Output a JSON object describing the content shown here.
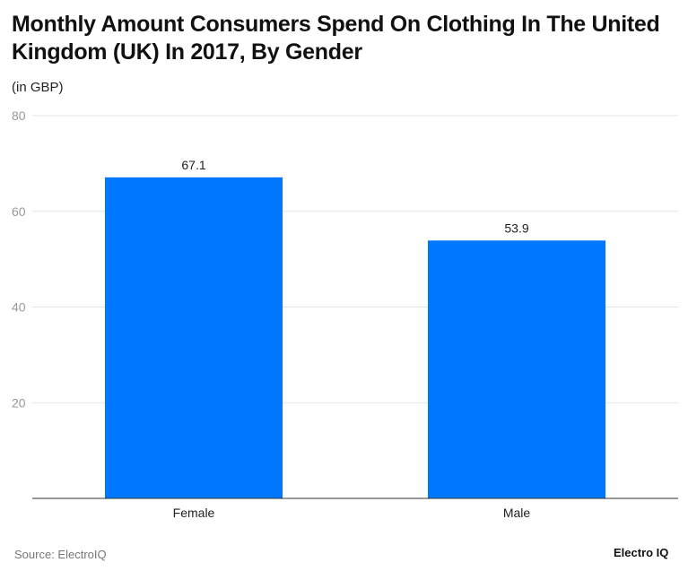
{
  "chart_data": {
    "type": "bar",
    "title": "Monthly Amount Consumers Spend On Clothing In The United Kingdom (UK) In 2017, By Gender",
    "ylabel": "(in GBP)",
    "xlabel": "",
    "categories": [
      "Female",
      "Male"
    ],
    "values": [
      67.1,
      53.9
    ],
    "data_labels": [
      "67.1",
      "53.9"
    ],
    "ylim": [
      0,
      80
    ],
    "yticks": [
      20,
      40,
      60,
      80
    ],
    "grid": true,
    "bar_color": "#0077ff",
    "legend": "none"
  },
  "footer": {
    "source": "Source: ElectroIQ",
    "logo": "Electro IQ"
  }
}
